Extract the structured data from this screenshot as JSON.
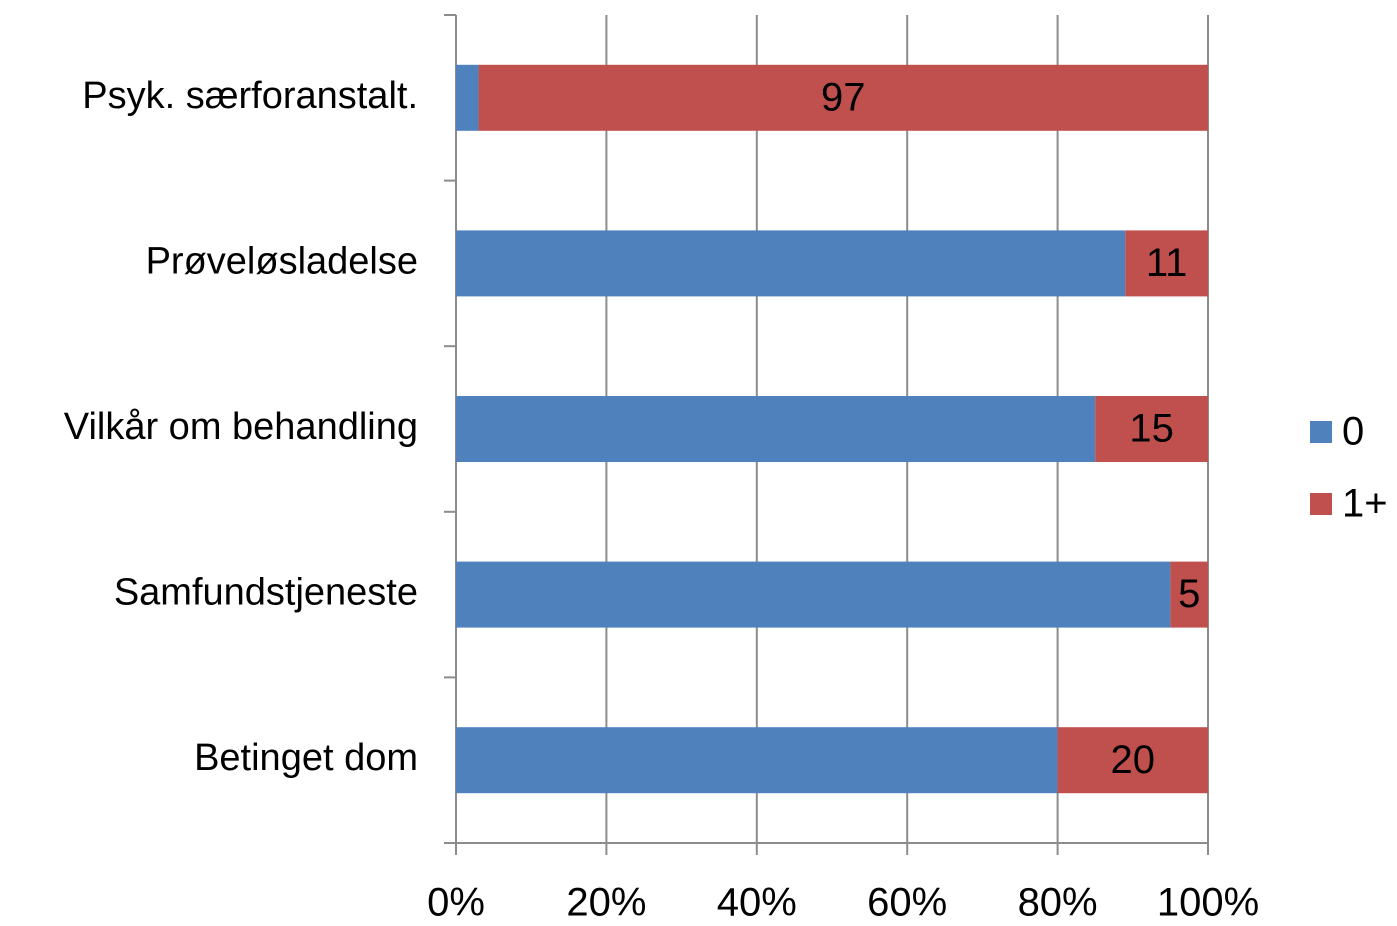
{
  "chart_data": {
    "type": "stacked_barh",
    "categories": [
      "Psyk. særforanstalt.",
      "Prøveløsladelse",
      "Vilkår om behandling",
      "Samfundstjeneste",
      "Betinget dom"
    ],
    "series": [
      {
        "name": "0",
        "color": "#4f81bd",
        "values": [
          3,
          89,
          85,
          95,
          80
        ],
        "data_labels": false
      },
      {
        "name": "1+",
        "color": "#c0504d",
        "values": [
          97,
          11,
          15,
          5,
          20
        ],
        "data_labels": true
      }
    ],
    "xlim": [
      0,
      100
    ],
    "xticks": [
      {
        "value": 0,
        "label": "0%"
      },
      {
        "value": 20,
        "label": "20%"
      },
      {
        "value": 40,
        "label": "40%"
      },
      {
        "value": 60,
        "label": "60%"
      },
      {
        "value": 80,
        "label": "80%"
      },
      {
        "value": 100,
        "label": "100%"
      }
    ],
    "grid": true,
    "legend": "right"
  }
}
